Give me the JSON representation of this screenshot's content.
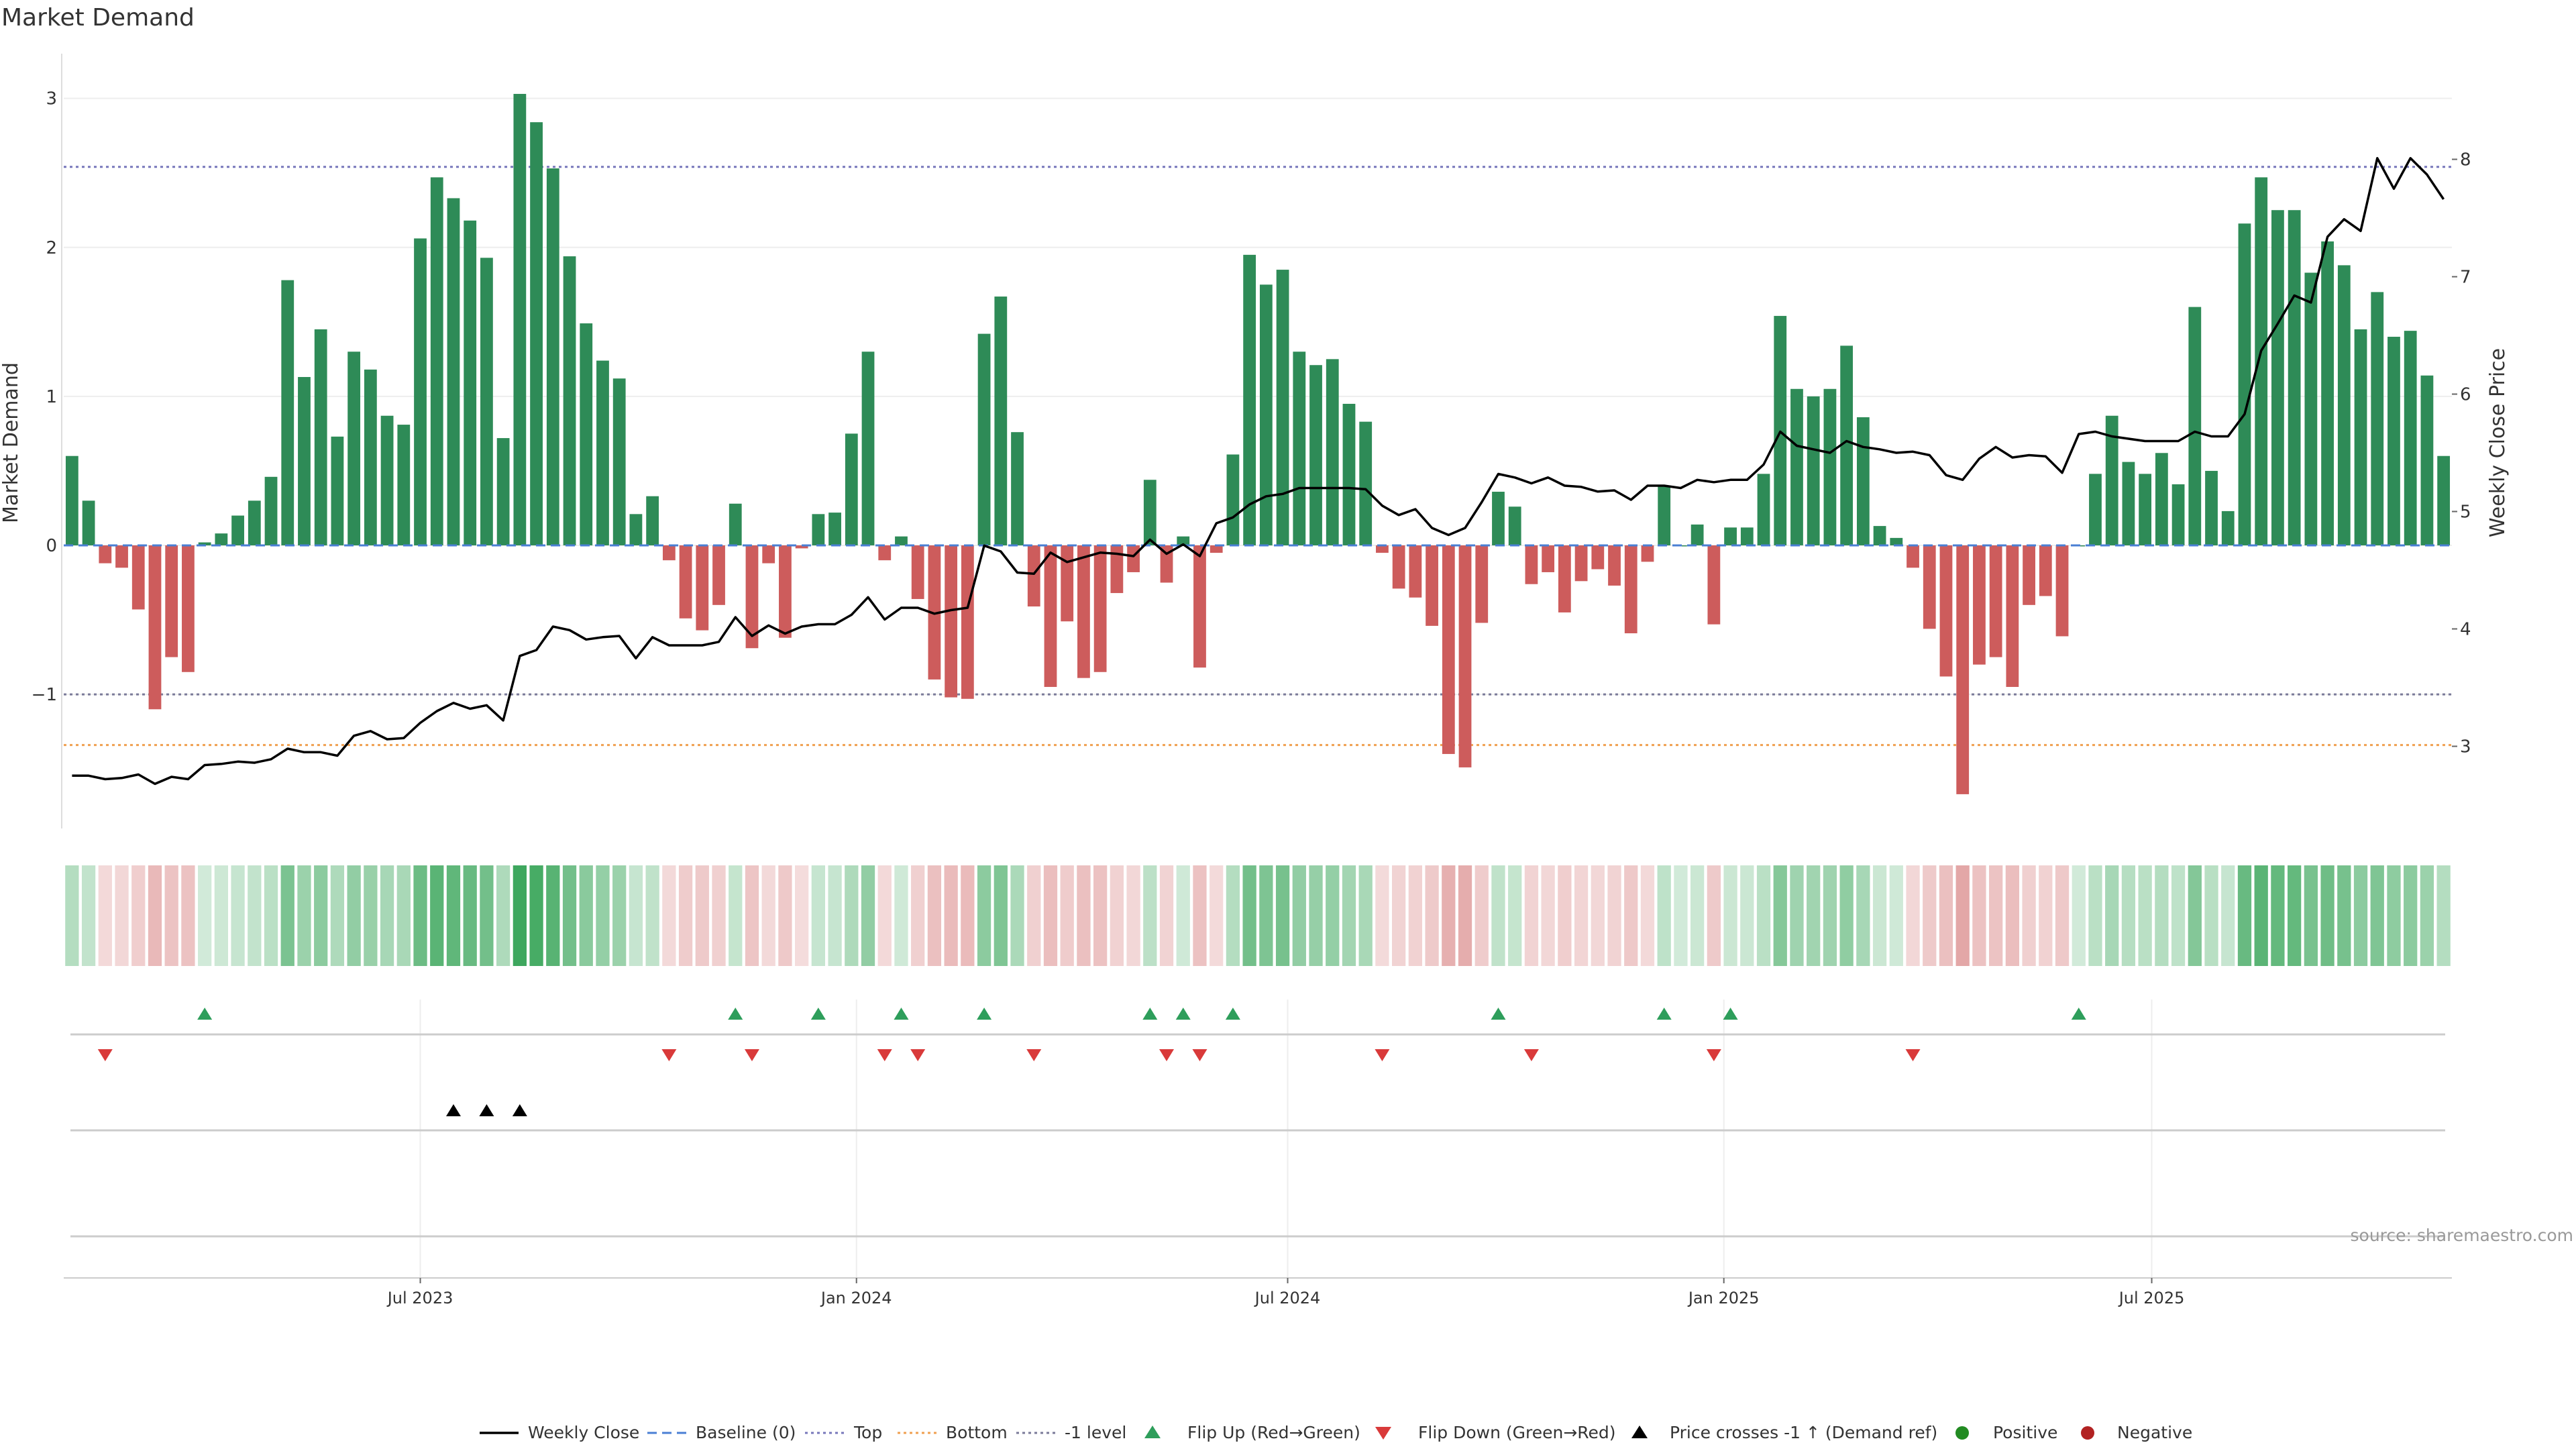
{
  "chart_data": {
    "type": "bar",
    "title": "Market Demand",
    "ylabel": "Market Demand",
    "y2label": "Weekly Close Price",
    "ylim": [
      -1.9,
      3.3
    ],
    "y2lim": [
      2.3,
      8.9
    ],
    "yticks": [
      {
        "v": 3,
        "label": "3"
      },
      {
        "v": 2,
        "label": "2"
      },
      {
        "v": 1,
        "label": "1"
      },
      {
        "v": 0,
        "label": "0"
      },
      {
        "v": -1,
        "label": "−1"
      }
    ],
    "y2ticks": [
      {
        "v": 8,
        "label": "8"
      },
      {
        "v": 7,
        "label": "7"
      },
      {
        "v": 6,
        "label": "6"
      },
      {
        "v": 5,
        "label": "5"
      },
      {
        "v": 4,
        "label": "4"
      },
      {
        "v": 3,
        "label": "3"
      }
    ],
    "xlim": [
      -0.5,
      143.5
    ],
    "xticks": [
      {
        "i": 21,
        "label": "Jul 2023"
      },
      {
        "i": 47.3,
        "label": "Jan 2024"
      },
      {
        "i": 73.3,
        "label": "Jul 2024"
      },
      {
        "i": 99.6,
        "label": "Jan 2025"
      },
      {
        "i": 125.4,
        "label": "Jul 2025"
      }
    ],
    "reference_lines": {
      "baseline": 0,
      "top": 2.54,
      "bottom": -1.34,
      "minus_one_level": -1
    },
    "demand": [
      0.6,
      0.3,
      -0.12,
      -0.15,
      -0.43,
      -1.1,
      -0.75,
      -0.85,
      0.02,
      0.08,
      0.2,
      0.3,
      0.46,
      1.78,
      1.13,
      1.45,
      0.73,
      1.3,
      1.18,
      0.87,
      0.81,
      2.06,
      2.47,
      2.33,
      2.18,
      1.93,
      0.72,
      3.03,
      2.84,
      2.53,
      1.94,
      1.49,
      1.24,
      1.12,
      0.21,
      0.33,
      -0.1,
      -0.49,
      -0.57,
      -0.4,
      0.28,
      -0.69,
      -0.12,
      -0.62,
      -0.02,
      0.21,
      0.22,
      0.75,
      1.3,
      -0.1,
      0.06,
      -0.36,
      -0.9,
      -1.02,
      -1.03,
      1.42,
      1.67,
      0.76,
      -0.41,
      -0.95,
      -0.51,
      -0.89,
      -0.85,
      -0.32,
      -0.18,
      0.44,
      -0.25,
      0.06,
      -0.82,
      -0.05,
      0.61,
      1.95,
      1.75,
      1.85,
      1.3,
      1.21,
      1.25,
      0.95,
      0.83,
      -0.05,
      -0.29,
      -0.35,
      -0.54,
      -1.4,
      -1.49,
      -0.52,
      0.36,
      0.26,
      -0.26,
      -0.18,
      -0.45,
      -0.24,
      -0.16,
      -0.27,
      -0.59,
      -0.11,
      0.4,
      0.0,
      0.14,
      -0.53,
      0.12,
      0.12,
      0.48,
      1.54,
      1.05,
      1.0,
      1.05,
      1.34,
      0.86,
      0.13,
      0.05,
      -0.15,
      -0.56,
      -0.88,
      -1.67,
      -0.8,
      -0.75,
      -0.95,
      -0.4,
      -0.34,
      -0.61,
      0.0,
      0.48,
      0.87,
      0.56,
      0.48,
      0.62,
      0.41,
      1.6,
      0.5,
      0.23,
      2.16,
      2.47,
      2.25,
      2.25,
      1.83,
      2.04,
      1.88,
      1.45,
      1.7,
      1.4,
      1.44,
      1.14,
      0.6
    ],
    "weekly_close": [
      2.75,
      2.75,
      2.72,
      2.73,
      2.76,
      2.68,
      2.74,
      2.72,
      2.84,
      2.85,
      2.87,
      2.86,
      2.89,
      2.98,
      2.95,
      2.95,
      2.92,
      3.09,
      3.13,
      3.06,
      3.07,
      3.2,
      3.3,
      3.37,
      3.32,
      3.35,
      3.22,
      3.77,
      3.82,
      4.02,
      3.99,
      3.91,
      3.93,
      3.94,
      3.75,
      3.93,
      3.86,
      3.86,
      3.86,
      3.89,
      4.1,
      3.94,
      4.03,
      3.96,
      4.02,
      4.04,
      4.04,
      4.12,
      4.27,
      4.08,
      4.18,
      4.18,
      4.13,
      4.16,
      4.18,
      4.71,
      4.66,
      4.48,
      4.47,
      4.65,
      4.57,
      4.61,
      4.65,
      4.64,
      4.62,
      4.76,
      4.64,
      4.72,
      4.62,
      4.9,
      4.95,
      5.06,
      5.13,
      5.15,
      5.2,
      5.2,
      5.2,
      5.2,
      5.19,
      5.05,
      4.97,
      5.02,
      4.86,
      4.8,
      4.86,
      5.08,
      5.32,
      5.29,
      5.24,
      5.29,
      5.22,
      5.21,
      5.17,
      5.18,
      5.1,
      5.22,
      5.22,
      5.2,
      5.27,
      5.25,
      5.27,
      5.27,
      5.4,
      5.68,
      5.56,
      5.53,
      5.5,
      5.6,
      5.55,
      5.53,
      5.5,
      5.51,
      5.48,
      5.31,
      5.27,
      5.45,
      5.55,
      5.46,
      5.48,
      5.47,
      5.33,
      5.66,
      5.68,
      5.64,
      5.62,
      5.6,
      5.6,
      5.6,
      5.68,
      5.64,
      5.64,
      5.83,
      6.37,
      6.6,
      6.84,
      6.78,
      7.34,
      7.49,
      7.39,
      8.01,
      7.75,
      8.01,
      7.87,
      7.66
    ],
    "flip_up": [
      8,
      40,
      45,
      50,
      55,
      65,
      67,
      70,
      86,
      96,
      100,
      121
    ],
    "flip_down": [
      2,
      36,
      41,
      49,
      51,
      58,
      66,
      68,
      79,
      88,
      99,
      111
    ],
    "price_crosses_minus_one": [
      23,
      25,
      27
    ],
    "legend": [
      {
        "key": "weekly_close",
        "label": "Weekly Close"
      },
      {
        "key": "baseline",
        "label": "Baseline (0)"
      },
      {
        "key": "top",
        "label": "Top"
      },
      {
        "key": "bottom",
        "label": "Bottom"
      },
      {
        "key": "minus_one",
        "label": "-1 level"
      },
      {
        "key": "flip_up",
        "label": "Flip Up (Red→Green)"
      },
      {
        "key": "flip_down",
        "label": "Flip Down (Green→Red)"
      },
      {
        "key": "price_cross",
        "label": "Price crosses -1 ↑ (Demand ref)"
      },
      {
        "key": "positive",
        "label": "Positive"
      },
      {
        "key": "negative",
        "label": "Negative"
      }
    ],
    "legend_placement": "bottom-center",
    "grid": true,
    "colors": {
      "positive": "#2e8b57",
      "negative": "#cd5c5c",
      "weekly_close": "#000000",
      "baseline": "#4a7fd4",
      "top": "#7777bb",
      "bottom": "#f0a050",
      "minus_one": "#7a7a99",
      "flip_up": "#2e9e5b",
      "flip_down": "#d93a3a",
      "price_cross": "#000000",
      "positive_marker": "#228b22",
      "negative_marker": "#b22222"
    }
  },
  "source_note": "source: sharemaestro.com"
}
